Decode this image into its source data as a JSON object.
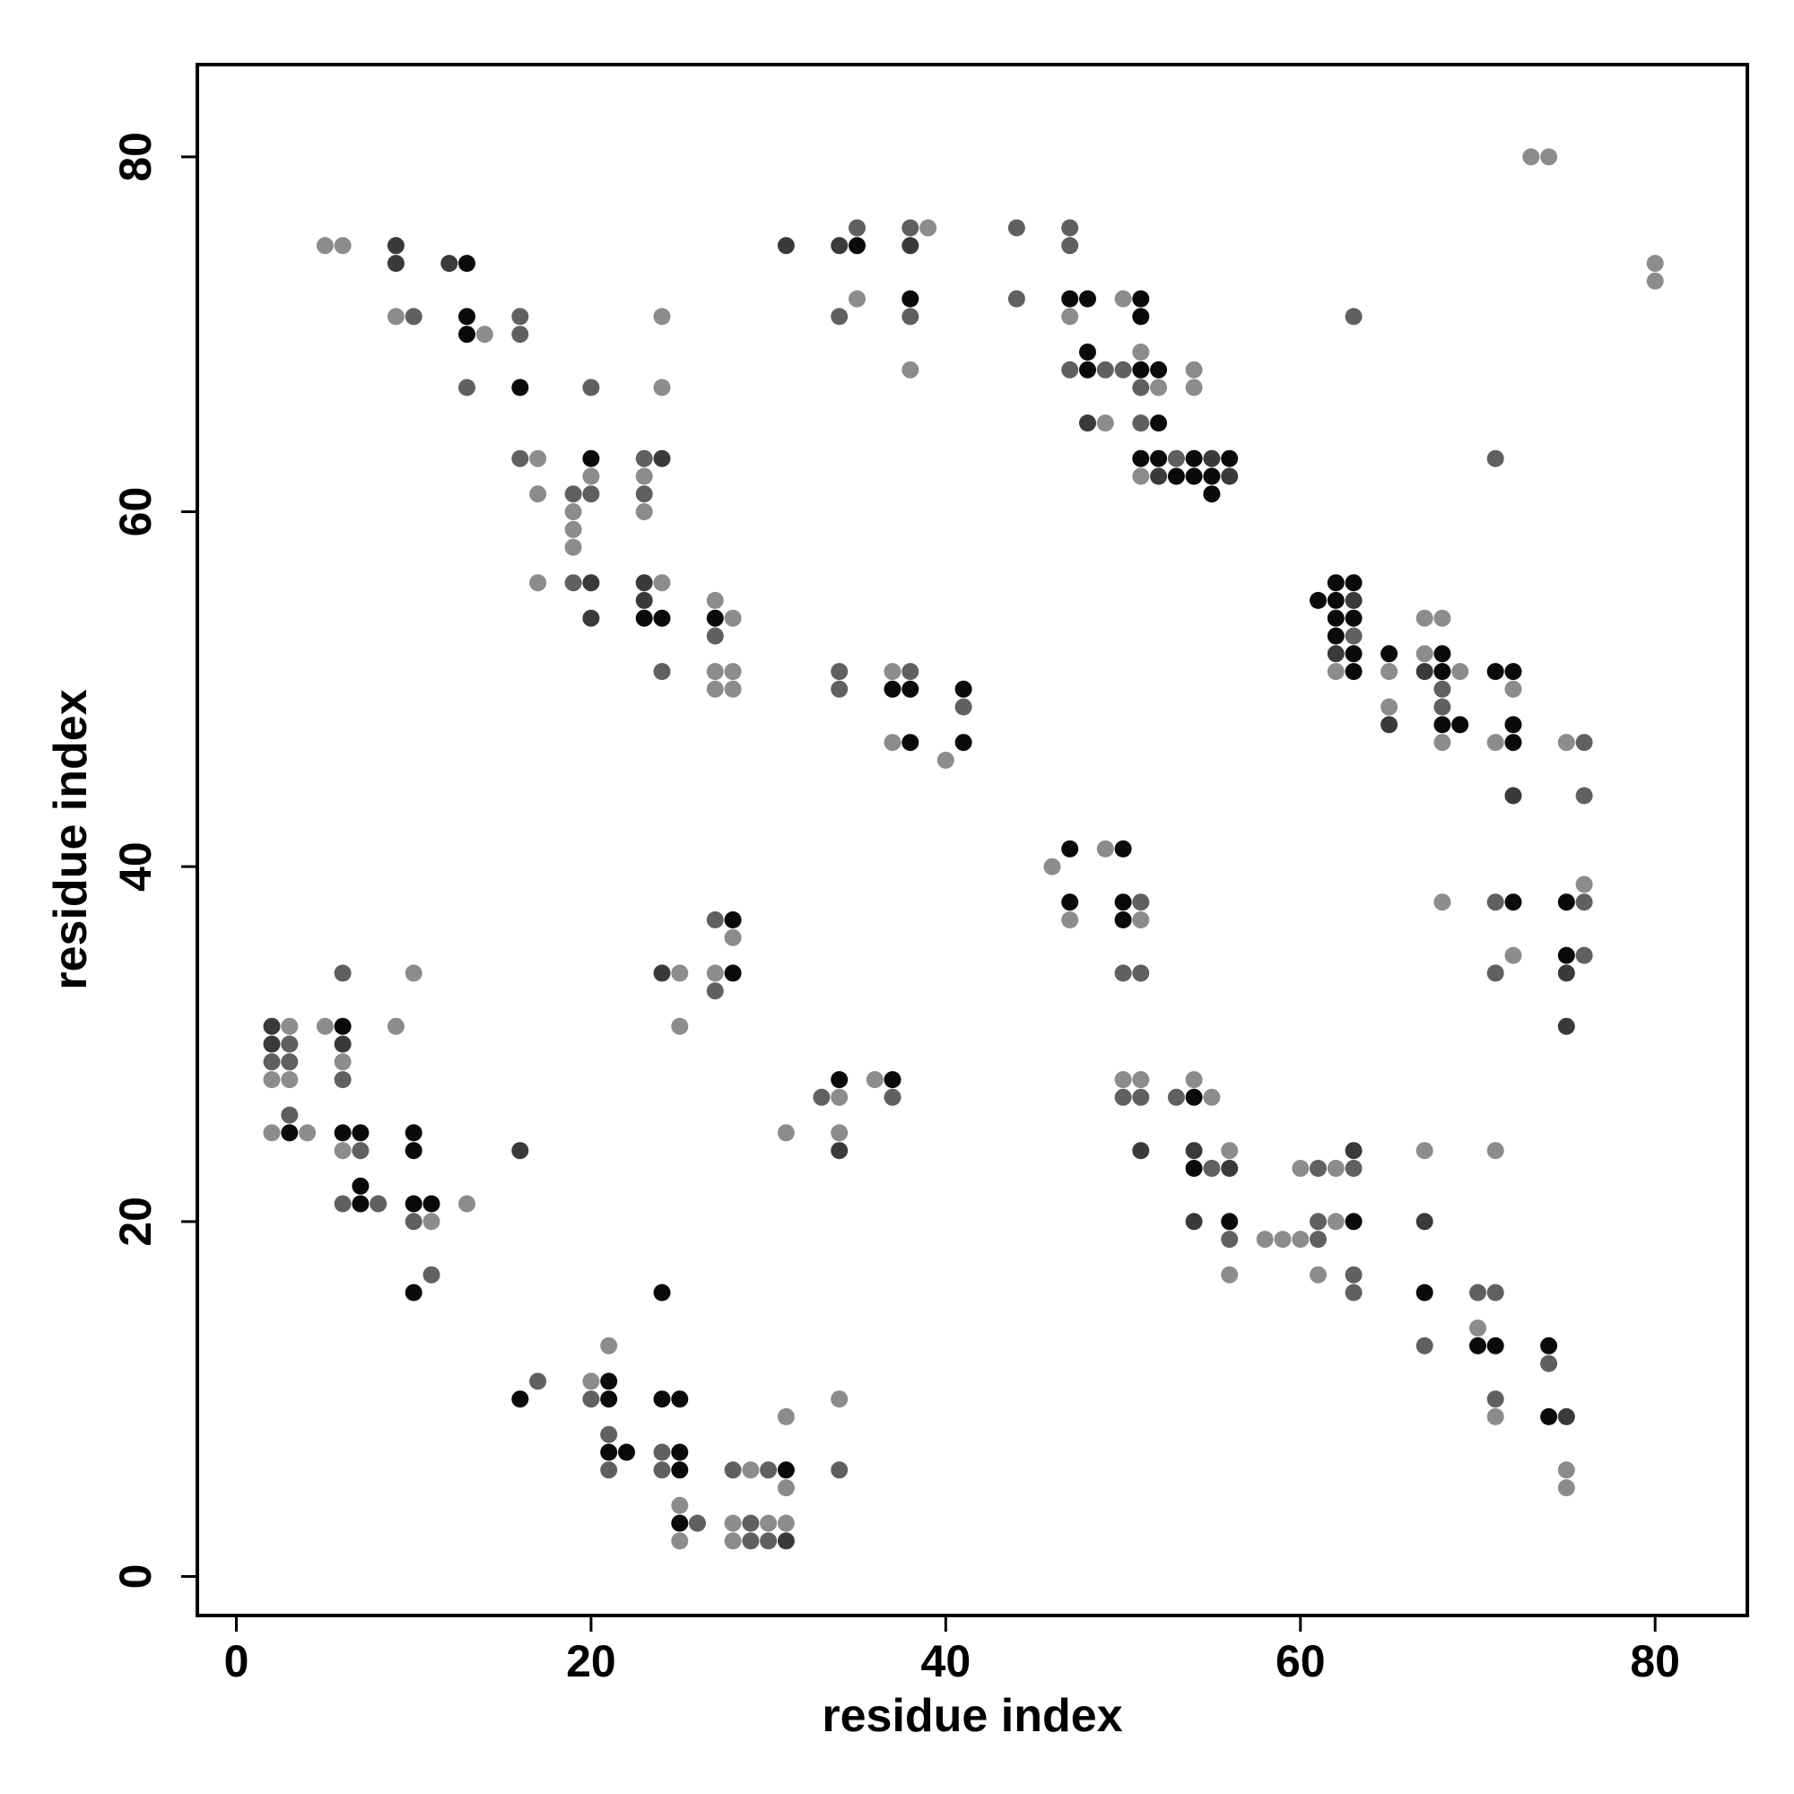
{
  "chart_data": {
    "type": "scatter",
    "xlabel": "residue index",
    "ylabel": "residue index",
    "xlim": [
      -2.2,
      85.2
    ],
    "ylim": [
      -2.2,
      85.2
    ],
    "xticks": [
      0,
      20,
      40,
      60,
      80
    ],
    "yticks": [
      0,
      20,
      40,
      60,
      80
    ],
    "grid": false,
    "legend": "none",
    "shade_colors": {
      "1": "#0a0a0a",
      "2": "#3a3a3a",
      "3": "#606060",
      "4": "#8c8c8c"
    },
    "points": [
      [
        5,
        75,
        4
      ],
      [
        6,
        75,
        4
      ],
      [
        9,
        75,
        2
      ],
      [
        9,
        74,
        2
      ],
      [
        9,
        71,
        4
      ],
      [
        10,
        71,
        3
      ],
      [
        12,
        74,
        2
      ],
      [
        13,
        74,
        1
      ],
      [
        13,
        71,
        1
      ],
      [
        13,
        70,
        1
      ],
      [
        14,
        70,
        4
      ],
      [
        13,
        67,
        3
      ],
      [
        16,
        71,
        3
      ],
      [
        16,
        70,
        3
      ],
      [
        16,
        67,
        1
      ],
      [
        16,
        63,
        3
      ],
      [
        17,
        63,
        4
      ],
      [
        17,
        61,
        4
      ],
      [
        17,
        56,
        4
      ],
      [
        19,
        61,
        3
      ],
      [
        19,
        60,
        4
      ],
      [
        19,
        59,
        4
      ],
      [
        19,
        58,
        4
      ],
      [
        19,
        56,
        3
      ],
      [
        20,
        67,
        3
      ],
      [
        20,
        63,
        1
      ],
      [
        20,
        62,
        4
      ],
      [
        20,
        61,
        3
      ],
      [
        20,
        56,
        2
      ],
      [
        20,
        54,
        2
      ],
      [
        23,
        63,
        3
      ],
      [
        23,
        62,
        4
      ],
      [
        23,
        61,
        3
      ],
      [
        23,
        60,
        4
      ],
      [
        23,
        56,
        2
      ],
      [
        23,
        55,
        2
      ],
      [
        23,
        54,
        1
      ],
      [
        24,
        71,
        4
      ],
      [
        24,
        67,
        4
      ],
      [
        24,
        63,
        2
      ],
      [
        24,
        56,
        4
      ],
      [
        24,
        54,
        1
      ],
      [
        24,
        51,
        3
      ],
      [
        27,
        55,
        4
      ],
      [
        27,
        54,
        1
      ],
      [
        27,
        53,
        3
      ],
      [
        27,
        51,
        4
      ],
      [
        27,
        50,
        4
      ],
      [
        28,
        54,
        4
      ],
      [
        28,
        51,
        4
      ],
      [
        28,
        50,
        4
      ],
      [
        31,
        75,
        2
      ],
      [
        34,
        75,
        2
      ],
      [
        35,
        75,
        1
      ],
      [
        35,
        76,
        3
      ],
      [
        35,
        72,
        4
      ],
      [
        34,
        71,
        3
      ],
      [
        38,
        76,
        3
      ],
      [
        39,
        76,
        4
      ],
      [
        38,
        75,
        2
      ],
      [
        38,
        72,
        1
      ],
      [
        38,
        71,
        3
      ],
      [
        38,
        68,
        4
      ],
      [
        44,
        76,
        3
      ],
      [
        44,
        72,
        3
      ],
      [
        47,
        76,
        3
      ],
      [
        47,
        75,
        3
      ],
      [
        47,
        72,
        1
      ],
      [
        48,
        72,
        1
      ],
      [
        47,
        71,
        4
      ],
      [
        48,
        69,
        1
      ],
      [
        47,
        68,
        3
      ],
      [
        48,
        68,
        1
      ],
      [
        49,
        68,
        3
      ],
      [
        50,
        68,
        3
      ],
      [
        48,
        65,
        2
      ],
      [
        49,
        65,
        4
      ],
      [
        50,
        72,
        4
      ],
      [
        51,
        72,
        1
      ],
      [
        51,
        71,
        1
      ],
      [
        51,
        69,
        4
      ],
      [
        51,
        68,
        1
      ],
      [
        51,
        67,
        3
      ],
      [
        51,
        65,
        3
      ],
      [
        51,
        63,
        1
      ],
      [
        51,
        62,
        4
      ],
      [
        52,
        68,
        1
      ],
      [
        52,
        67,
        4
      ],
      [
        52,
        65,
        1
      ],
      [
        52,
        63,
        1
      ],
      [
        52,
        62,
        2
      ],
      [
        53,
        63,
        3
      ],
      [
        53,
        62,
        1
      ],
      [
        54,
        68,
        4
      ],
      [
        54,
        67,
        4
      ],
      [
        54,
        63,
        1
      ],
      [
        54,
        62,
        1
      ],
      [
        55,
        63,
        2
      ],
      [
        55,
        62,
        1
      ],
      [
        55,
        61,
        1
      ],
      [
        56,
        63,
        1
      ],
      [
        56,
        62,
        2
      ],
      [
        34,
        51,
        3
      ],
      [
        34,
        50,
        3
      ],
      [
        37,
        51,
        4
      ],
      [
        38,
        51,
        3
      ],
      [
        37,
        50,
        1
      ],
      [
        38,
        50,
        1
      ],
      [
        37,
        47,
        4
      ],
      [
        38,
        47,
        1
      ],
      [
        41,
        50,
        1
      ],
      [
        41,
        49,
        3
      ],
      [
        41,
        47,
        1
      ],
      [
        40,
        46,
        4
      ],
      [
        61,
        55,
        1
      ],
      [
        62,
        56,
        1
      ],
      [
        63,
        56,
        1
      ],
      [
        62,
        55,
        1
      ],
      [
        63,
        55,
        2
      ],
      [
        62,
        54,
        1
      ],
      [
        63,
        54,
        1
      ],
      [
        62,
        53,
        1
      ],
      [
        63,
        53,
        3
      ],
      [
        62,
        52,
        2
      ],
      [
        63,
        52,
        1
      ],
      [
        62,
        51,
        4
      ],
      [
        63,
        51,
        1
      ],
      [
        65,
        52,
        1
      ],
      [
        65,
        51,
        4
      ],
      [
        65,
        49,
        4
      ],
      [
        65,
        48,
        2
      ],
      [
        67,
        54,
        4
      ],
      [
        68,
        54,
        4
      ],
      [
        67,
        52,
        4
      ],
      [
        68,
        52,
        1
      ],
      [
        67,
        51,
        2
      ],
      [
        68,
        51,
        1
      ],
      [
        69,
        51,
        4
      ],
      [
        68,
        50,
        3
      ],
      [
        68,
        49,
        3
      ],
      [
        68,
        48,
        1
      ],
      [
        69,
        48,
        1
      ],
      [
        68,
        47,
        4
      ],
      [
        71,
        51,
        1
      ],
      [
        72,
        51,
        1
      ],
      [
        72,
        50,
        4
      ],
      [
        72,
        48,
        1
      ],
      [
        71,
        47,
        4
      ],
      [
        72,
        47,
        1
      ],
      [
        72,
        44,
        2
      ],
      [
        75,
        47,
        4
      ],
      [
        76,
        47,
        3
      ],
      [
        76,
        44,
        3
      ],
      [
        71,
        63,
        3
      ],
      [
        63,
        71,
        3
      ],
      [
        46,
        40,
        4
      ],
      [
        47,
        41,
        1
      ],
      [
        49,
        41,
        4
      ],
      [
        50,
        41,
        1
      ],
      [
        47,
        38,
        1
      ],
      [
        50,
        38,
        1
      ],
      [
        51,
        38,
        3
      ],
      [
        47,
        37,
        4
      ],
      [
        50,
        37,
        1
      ],
      [
        51,
        37,
        4
      ],
      [
        50,
        34,
        3
      ],
      [
        51,
        34,
        3
      ],
      [
        50,
        28,
        4
      ],
      [
        51,
        28,
        4
      ],
      [
        50,
        27,
        3
      ],
      [
        51,
        27,
        3
      ],
      [
        51,
        24,
        2
      ],
      [
        53,
        27,
        3
      ],
      [
        54,
        28,
        4
      ],
      [
        54,
        27,
        1
      ],
      [
        55,
        27,
        4
      ],
      [
        54,
        24,
        2
      ],
      [
        54,
        23,
        1
      ],
      [
        55,
        23,
        3
      ],
      [
        56,
        24,
        4
      ],
      [
        56,
        23,
        2
      ],
      [
        54,
        20,
        2
      ],
      [
        56,
        20,
        1
      ],
      [
        56,
        19,
        3
      ],
      [
        56,
        17,
        4
      ],
      [
        58,
        19,
        4
      ],
      [
        59,
        19,
        4
      ],
      [
        60,
        19,
        4
      ],
      [
        61,
        19,
        3
      ],
      [
        60,
        23,
        4
      ],
      [
        61,
        23,
        3
      ],
      [
        62,
        23,
        4
      ],
      [
        63,
        24,
        2
      ],
      [
        63,
        23,
        3
      ],
      [
        61,
        20,
        3
      ],
      [
        62,
        20,
        4
      ],
      [
        63,
        20,
        1
      ],
      [
        61,
        17,
        4
      ],
      [
        63,
        17,
        3
      ],
      [
        63,
        16,
        3
      ],
      [
        67,
        24,
        4
      ],
      [
        67,
        20,
        2
      ],
      [
        67,
        16,
        1
      ],
      [
        67,
        13,
        3
      ],
      [
        71,
        24,
        4
      ],
      [
        70,
        16,
        3
      ],
      [
        71,
        16,
        3
      ],
      [
        70,
        14,
        4
      ],
      [
        70,
        13,
        1
      ],
      [
        71,
        13,
        1
      ],
      [
        71,
        10,
        3
      ],
      [
        71,
        9,
        4
      ],
      [
        74,
        13,
        1
      ],
      [
        74,
        12,
        3
      ],
      [
        74,
        9,
        1
      ],
      [
        75,
        9,
        2
      ],
      [
        75,
        6,
        4
      ],
      [
        75,
        5,
        4
      ],
      [
        68,
        38,
        4
      ],
      [
        71,
        38,
        3
      ],
      [
        72,
        38,
        1
      ],
      [
        71,
        34,
        3
      ],
      [
        72,
        35,
        4
      ],
      [
        75,
        38,
        1
      ],
      [
        76,
        38,
        3
      ],
      [
        76,
        39,
        4
      ],
      [
        75,
        35,
        1
      ],
      [
        76,
        35,
        3
      ],
      [
        75,
        34,
        2
      ],
      [
        75,
        31,
        2
      ],
      [
        73,
        80,
        4
      ],
      [
        74,
        80,
        4
      ],
      [
        80,
        74,
        4
      ],
      [
        80,
        73,
        4
      ],
      [
        2,
        31,
        2
      ],
      [
        3,
        31,
        4
      ],
      [
        2,
        30,
        2
      ],
      [
        3,
        30,
        3
      ],
      [
        2,
        29,
        3
      ],
      [
        3,
        29,
        3
      ],
      [
        2,
        28,
        4
      ],
      [
        3,
        28,
        4
      ],
      [
        3,
        26,
        3
      ],
      [
        2,
        25,
        4
      ],
      [
        3,
        25,
        1
      ],
      [
        4,
        25,
        4
      ],
      [
        5,
        31,
        4
      ],
      [
        6,
        31,
        1
      ],
      [
        6,
        34,
        3
      ],
      [
        6,
        30,
        2
      ],
      [
        6,
        29,
        4
      ],
      [
        6,
        28,
        3
      ],
      [
        6,
        25,
        1
      ],
      [
        7,
        25,
        1
      ],
      [
        6,
        24,
        4
      ],
      [
        7,
        24,
        3
      ],
      [
        7,
        22,
        1
      ],
      [
        6,
        21,
        3
      ],
      [
        7,
        21,
        1
      ],
      [
        8,
        21,
        3
      ],
      [
        9,
        31,
        4
      ],
      [
        10,
        34,
        4
      ],
      [
        10,
        25,
        1
      ],
      [
        10,
        24,
        1
      ],
      [
        10,
        21,
        1
      ],
      [
        11,
        21,
        1
      ],
      [
        10,
        20,
        3
      ],
      [
        11,
        20,
        4
      ],
      [
        13,
        21,
        4
      ],
      [
        10,
        16,
        1
      ],
      [
        11,
        17,
        3
      ],
      [
        16,
        24,
        2
      ],
      [
        24,
        34,
        2
      ],
      [
        25,
        34,
        4
      ],
      [
        25,
        31,
        4
      ],
      [
        27,
        37,
        3
      ],
      [
        28,
        37,
        1
      ],
      [
        28,
        36,
        4
      ],
      [
        27,
        34,
        4
      ],
      [
        28,
        34,
        1
      ],
      [
        27,
        33,
        3
      ],
      [
        31,
        25,
        4
      ],
      [
        33,
        27,
        3
      ],
      [
        34,
        27,
        4
      ],
      [
        34,
        28,
        1
      ],
      [
        34,
        25,
        4
      ],
      [
        34,
        24,
        2
      ],
      [
        36,
        28,
        4
      ],
      [
        37,
        28,
        1
      ],
      [
        37,
        27,
        3
      ],
      [
        16,
        10,
        1
      ],
      [
        17,
        11,
        3
      ],
      [
        20,
        11,
        4
      ],
      [
        21,
        11,
        1
      ],
      [
        21,
        13,
        4
      ],
      [
        20,
        10,
        3
      ],
      [
        21,
        10,
        1
      ],
      [
        21,
        8,
        3
      ],
      [
        21,
        7,
        1
      ],
      [
        22,
        7,
        1
      ],
      [
        21,
        6,
        3
      ],
      [
        24,
        16,
        1
      ],
      [
        24,
        10,
        1
      ],
      [
        25,
        10,
        1
      ],
      [
        24,
        7,
        3
      ],
      [
        25,
        7,
        1
      ],
      [
        24,
        6,
        3
      ],
      [
        25,
        6,
        1
      ],
      [
        25,
        4,
        4
      ],
      [
        25,
        3,
        1
      ],
      [
        26,
        3,
        3
      ],
      [
        25,
        2,
        4
      ],
      [
        28,
        6,
        3
      ],
      [
        29,
        6,
        4
      ],
      [
        30,
        6,
        3
      ],
      [
        31,
        6,
        1
      ],
      [
        31,
        5,
        4
      ],
      [
        31,
        9,
        4
      ],
      [
        28,
        3,
        4
      ],
      [
        29,
        3,
        3
      ],
      [
        30,
        3,
        4
      ],
      [
        31,
        3,
        4
      ],
      [
        28,
        2,
        4
      ],
      [
        29,
        2,
        3
      ],
      [
        30,
        2,
        3
      ],
      [
        31,
        2,
        2
      ],
      [
        34,
        10,
        4
      ],
      [
        34,
        6,
        3
      ]
    ]
  }
}
